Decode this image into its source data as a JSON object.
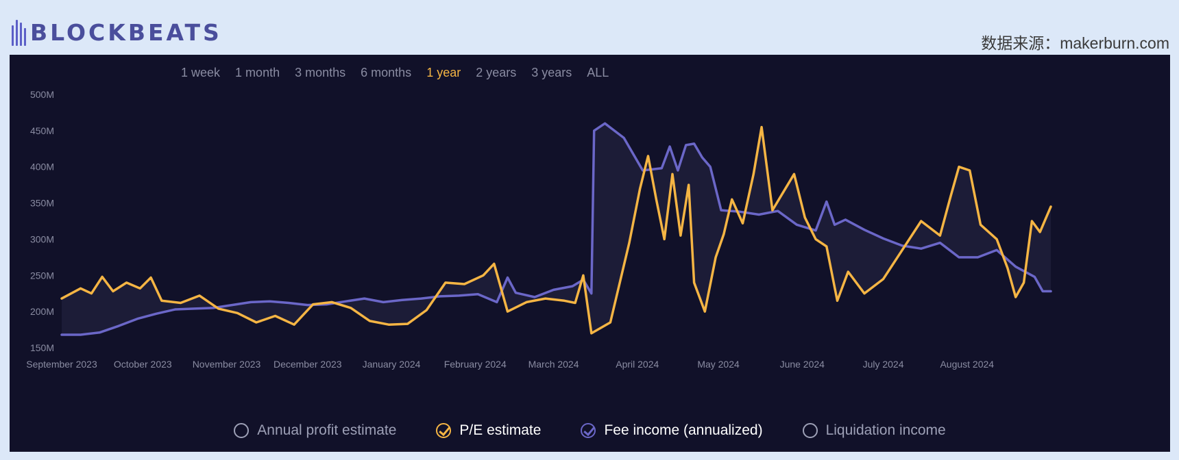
{
  "header": {
    "logo_text": "BLOCKBEATS",
    "source": "数据来源：makerburn.com"
  },
  "range_options": [
    "1 week",
    "1 month",
    "3 months",
    "6 months",
    "1 year",
    "2 years",
    "3 years",
    "ALL"
  ],
  "range_selected": "1 year",
  "legend": [
    {
      "label": "Annual profit estimate",
      "checked": false,
      "color": "#9da0b6"
    },
    {
      "label": "P/E estimate",
      "checked": true,
      "color": "#f5b544"
    },
    {
      "label": "Fee income (annualized)",
      "checked": true,
      "color": "#6b67c8"
    },
    {
      "label": "Liquidation income",
      "checked": false,
      "color": "#9da0b6"
    }
  ],
  "chart_data": {
    "type": "line",
    "title": "",
    "xlabel": "",
    "ylabel": "",
    "ylim": [
      150,
      500
    ],
    "y_unit": "M",
    "yticks": [
      "150M",
      "200M",
      "250M",
      "300M",
      "350M",
      "400M",
      "450M",
      "500M"
    ],
    "x_range": [
      "2023-09-01",
      "2024-09-01"
    ],
    "xticks": [
      {
        "label": "September 2023",
        "date": "2023-09-01"
      },
      {
        "label": "October 2023",
        "date": "2023-10-01"
      },
      {
        "label": "November 2023",
        "date": "2023-11-01"
      },
      {
        "label": "December 2023",
        "date": "2023-12-01"
      },
      {
        "label": "January 2024",
        "date": "2024-01-01"
      },
      {
        "label": "February 2024",
        "date": "2024-02-01"
      },
      {
        "label": "March 2024",
        "date": "2024-03-01"
      },
      {
        "label": "April 2024",
        "date": "2024-04-01"
      },
      {
        "label": "May 2024",
        "date": "2024-05-01"
      },
      {
        "label": "June 2024",
        "date": "2024-06-01"
      },
      {
        "label": "July 2024",
        "date": "2024-07-01"
      },
      {
        "label": "August 2024",
        "date": "2024-08-01"
      }
    ],
    "grid": false,
    "series": [
      {
        "name": "Fee income (annualized)",
        "color": "#6b67c8",
        "points": [
          [
            "2023-09-01",
            168
          ],
          [
            "2023-09-08",
            168
          ],
          [
            "2023-09-15",
            171
          ],
          [
            "2023-09-22",
            180
          ],
          [
            "2023-09-29",
            190
          ],
          [
            "2023-10-06",
            197
          ],
          [
            "2023-10-13",
            203
          ],
          [
            "2023-10-20",
            204
          ],
          [
            "2023-10-27",
            205
          ],
          [
            "2023-11-03",
            209
          ],
          [
            "2023-11-10",
            213
          ],
          [
            "2023-11-17",
            214
          ],
          [
            "2023-11-24",
            212
          ],
          [
            "2023-12-01",
            209
          ],
          [
            "2023-12-08",
            210
          ],
          [
            "2023-12-15",
            214
          ],
          [
            "2023-12-22",
            218
          ],
          [
            "2023-12-29",
            213
          ],
          [
            "2024-01-05",
            216
          ],
          [
            "2024-01-12",
            218
          ],
          [
            "2024-01-19",
            221
          ],
          [
            "2024-01-26",
            222
          ],
          [
            "2024-02-02",
            224
          ],
          [
            "2024-02-09",
            213
          ],
          [
            "2024-02-13",
            247
          ],
          [
            "2024-02-16",
            226
          ],
          [
            "2024-02-23",
            220
          ],
          [
            "2024-03-01",
            230
          ],
          [
            "2024-03-08",
            235
          ],
          [
            "2024-03-12",
            244
          ],
          [
            "2024-03-15",
            225
          ],
          [
            "2024-03-16",
            450
          ],
          [
            "2024-03-20",
            460
          ],
          [
            "2024-03-27",
            440
          ],
          [
            "2024-04-03",
            395
          ],
          [
            "2024-04-10",
            398
          ],
          [
            "2024-04-13",
            428
          ],
          [
            "2024-04-16",
            395
          ],
          [
            "2024-04-19",
            430
          ],
          [
            "2024-04-22",
            432
          ],
          [
            "2024-04-25",
            413
          ],
          [
            "2024-04-28",
            400
          ],
          [
            "2024-05-02",
            340
          ],
          [
            "2024-05-09",
            338
          ],
          [
            "2024-05-16",
            334
          ],
          [
            "2024-05-23",
            339
          ],
          [
            "2024-05-30",
            320
          ],
          [
            "2024-06-06",
            312
          ],
          [
            "2024-06-10",
            352
          ],
          [
            "2024-06-13",
            320
          ],
          [
            "2024-06-17",
            327
          ],
          [
            "2024-06-24",
            313
          ],
          [
            "2024-07-01",
            301
          ],
          [
            "2024-07-08",
            291
          ],
          [
            "2024-07-15",
            287
          ],
          [
            "2024-07-22",
            295
          ],
          [
            "2024-07-29",
            275
          ],
          [
            "2024-08-05",
            275
          ],
          [
            "2024-08-12",
            285
          ],
          [
            "2024-08-19",
            262
          ],
          [
            "2024-08-26",
            248
          ],
          [
            "2024-08-29",
            228
          ],
          [
            "2024-09-01",
            228
          ]
        ]
      },
      {
        "name": "P/E estimate",
        "color": "#f5b544",
        "points": [
          [
            "2023-09-01",
            218
          ],
          [
            "2023-09-08",
            232
          ],
          [
            "2023-09-12",
            225
          ],
          [
            "2023-09-16",
            248
          ],
          [
            "2023-09-20",
            228
          ],
          [
            "2023-09-25",
            240
          ],
          [
            "2023-09-30",
            232
          ],
          [
            "2023-10-04",
            247
          ],
          [
            "2023-10-08",
            215
          ],
          [
            "2023-10-15",
            212
          ],
          [
            "2023-10-22",
            222
          ],
          [
            "2023-10-29",
            204
          ],
          [
            "2023-11-05",
            198
          ],
          [
            "2023-11-12",
            185
          ],
          [
            "2023-11-19",
            194
          ],
          [
            "2023-11-26",
            182
          ],
          [
            "2023-12-03",
            210
          ],
          [
            "2023-12-10",
            213
          ],
          [
            "2023-12-17",
            205
          ],
          [
            "2023-12-24",
            187
          ],
          [
            "2023-12-31",
            182
          ],
          [
            "2024-01-07",
            183
          ],
          [
            "2024-01-14",
            202
          ],
          [
            "2024-01-21",
            240
          ],
          [
            "2024-01-28",
            238
          ],
          [
            "2024-02-04",
            250
          ],
          [
            "2024-02-08",
            266
          ],
          [
            "2024-02-13",
            200
          ],
          [
            "2024-02-20",
            213
          ],
          [
            "2024-02-27",
            218
          ],
          [
            "2024-03-05",
            215
          ],
          [
            "2024-03-09",
            212
          ],
          [
            "2024-03-12",
            250
          ],
          [
            "2024-03-15",
            170
          ],
          [
            "2024-03-22",
            185
          ],
          [
            "2024-03-29",
            295
          ],
          [
            "2024-04-02",
            370
          ],
          [
            "2024-04-05",
            415
          ],
          [
            "2024-04-08",
            355
          ],
          [
            "2024-04-11",
            300
          ],
          [
            "2024-04-14",
            390
          ],
          [
            "2024-04-17",
            305
          ],
          [
            "2024-04-20",
            375
          ],
          [
            "2024-04-22",
            240
          ],
          [
            "2024-04-26",
            200
          ],
          [
            "2024-04-30",
            275
          ],
          [
            "2024-05-03",
            307
          ],
          [
            "2024-05-06",
            355
          ],
          [
            "2024-05-10",
            322
          ],
          [
            "2024-05-14",
            390
          ],
          [
            "2024-05-17",
            455
          ],
          [
            "2024-05-21",
            340
          ],
          [
            "2024-05-25",
            365
          ],
          [
            "2024-05-29",
            390
          ],
          [
            "2024-06-02",
            330
          ],
          [
            "2024-06-06",
            300
          ],
          [
            "2024-06-10",
            290
          ],
          [
            "2024-06-14",
            215
          ],
          [
            "2024-06-18",
            255
          ],
          [
            "2024-06-24",
            225
          ],
          [
            "2024-07-01",
            245
          ],
          [
            "2024-07-08",
            285
          ],
          [
            "2024-07-15",
            325
          ],
          [
            "2024-07-22",
            305
          ],
          [
            "2024-07-26",
            360
          ],
          [
            "2024-07-29",
            400
          ],
          [
            "2024-08-02",
            395
          ],
          [
            "2024-08-06",
            320
          ],
          [
            "2024-08-12",
            300
          ],
          [
            "2024-08-16",
            260
          ],
          [
            "2024-08-19",
            220
          ],
          [
            "2024-08-22",
            240
          ],
          [
            "2024-08-25",
            325
          ],
          [
            "2024-08-28",
            310
          ],
          [
            "2024-09-01",
            345
          ]
        ]
      }
    ]
  }
}
